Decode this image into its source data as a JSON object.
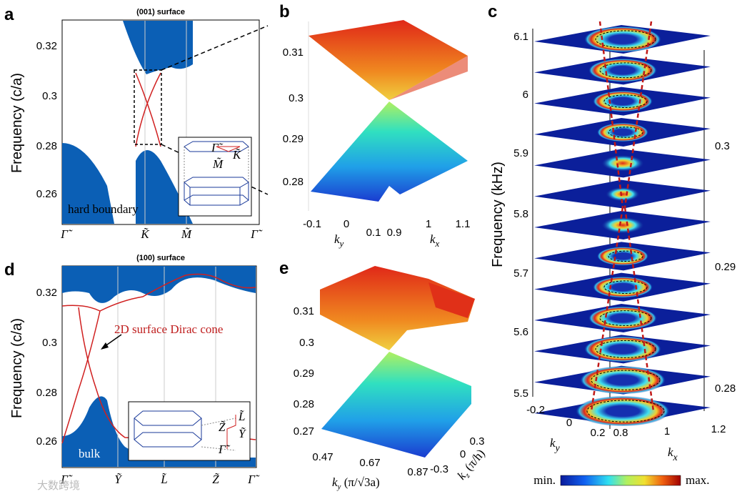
{
  "panels": {
    "a": {
      "letter": "a",
      "title": "(001) surface",
      "ylabel": "Frequency (c/a)",
      "yticks": [
        "0.32",
        "0.3",
        "0.28",
        "0.26"
      ],
      "xticks": [
        "Γ̃",
        "K̃",
        "M̃",
        "Γ̃"
      ],
      "annotation": "hard boundary",
      "inset_labels": [
        "Γ̃",
        "K̃",
        "M̃"
      ]
    },
    "b": {
      "letter": "b",
      "zticks": [
        "0.31",
        "0.3",
        "0.29",
        "0.28"
      ],
      "ky_ticks": [
        "-0.1",
        "0",
        "0.1"
      ],
      "kx_ticks": [
        "0.9",
        "1",
        "1.1"
      ],
      "ky_label": "k",
      "ky_sub": "y",
      "kx_label": "k",
      "kx_sub": "x"
    },
    "c": {
      "letter": "c",
      "ylabel": "Frequency (kHz)",
      "left_ticks": [
        "6.1",
        "6",
        "5.9",
        "5.8",
        "5.7",
        "5.6",
        "5.5"
      ],
      "right_ticks": [
        "0.3",
        "0.29",
        "0.28"
      ],
      "ky_ticks": [
        "-0.2",
        "0",
        "0.2"
      ],
      "kx_ticks": [
        "0.8",
        "1",
        "1.2"
      ],
      "ky_label": "k",
      "ky_sub": "y",
      "kx_label": "k",
      "kx_sub": "x",
      "colorbar_min": "min.",
      "colorbar_max": "max."
    },
    "d": {
      "letter": "d",
      "title": "(100) surface",
      "ylabel": "Frequency (c/a)",
      "yticks": [
        "0.32",
        "0.3",
        "0.28",
        "0.26"
      ],
      "xticks": [
        "Γ̃",
        "Ỹ",
        "L̃",
        "Z̃",
        "Γ̃"
      ],
      "dirac_label": "2D surface Dirac cone",
      "bulk_label": "bulk",
      "inset_labels": [
        "L̃",
        "Z̃",
        "Ỹ",
        "Γ̃"
      ]
    },
    "e": {
      "letter": "e",
      "zticks": [
        "0.31",
        "0.3",
        "0.29",
        "0.28",
        "0.27"
      ],
      "ky_ticks": [
        "0.47",
        "0.67",
        "0.87"
      ],
      "kz_ticks": [
        "0.3",
        "0",
        "-0.3"
      ],
      "ky_label": "k",
      "ky_sub": "y",
      "ky_unit": " (π/√3a)",
      "kz_label": "k",
      "kz_sub": "z",
      "kz_unit": " (π/h)"
    }
  },
  "watermark": "大数跨境",
  "colors": {
    "bulk_blue": "#0b5fb5",
    "curve_red": "#d02020",
    "jet_low": "#1e3cd0",
    "jet_high": "#e83a1a"
  }
}
